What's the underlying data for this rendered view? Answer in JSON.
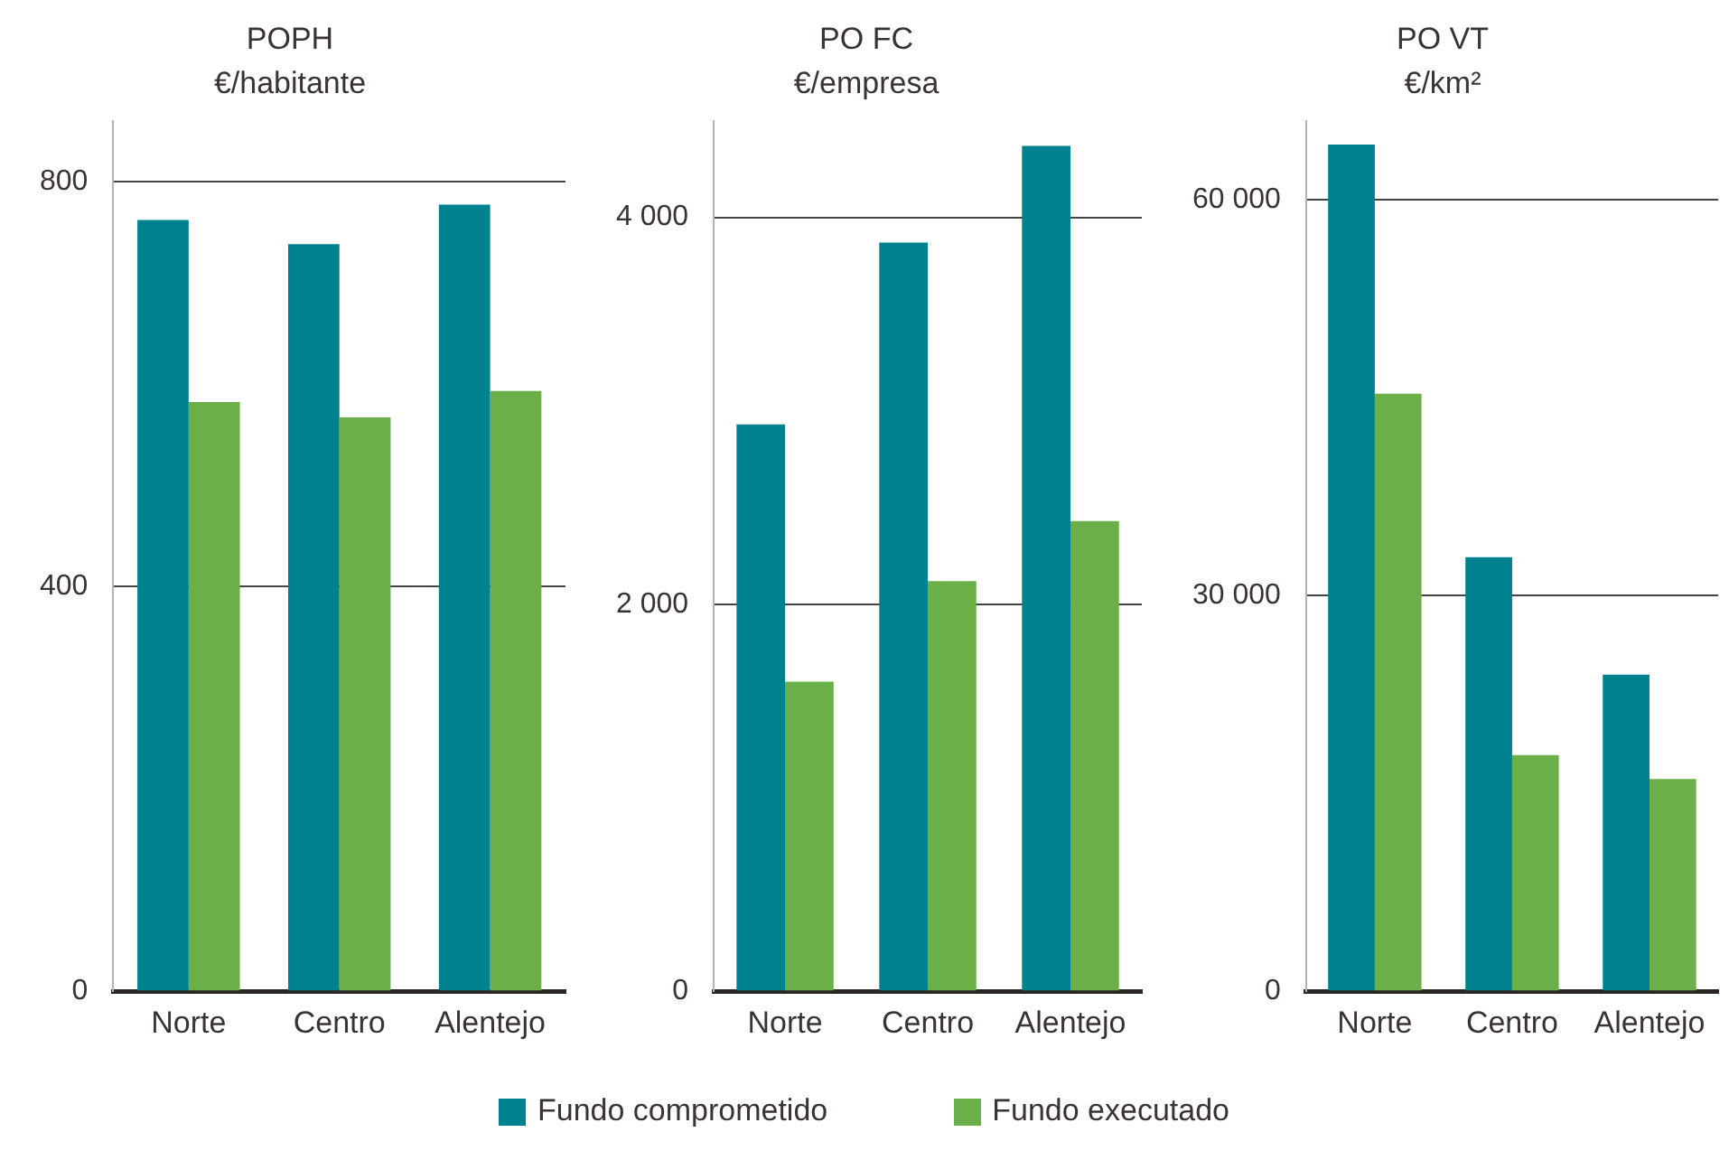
{
  "chart_data": [
    {
      "type": "bar",
      "title": "POPH",
      "subtitle": "€/habitante",
      "categories": [
        "Norte",
        "Centro",
        "Alentejo"
      ],
      "series": [
        {
          "name": "Fundo comprometido",
          "color": "#00818f",
          "values": [
            762,
            738,
            777
          ]
        },
        {
          "name": "Fundo executado",
          "color": "#6aaf48",
          "values": [
            582,
            567,
            593
          ]
        }
      ],
      "ylim": [
        0,
        860
      ],
      "yticks": [
        0,
        400,
        800
      ],
      "grid": "y",
      "legend": "bottom"
    },
    {
      "type": "bar",
      "title": "PO FC",
      "subtitle": "€/empresa",
      "categories": [
        "Norte",
        "Centro",
        "Alentejo"
      ],
      "series": [
        {
          "color": "#00818f",
          "values": [
            2930,
            3870,
            4370
          ]
        },
        {
          "color": "#6aaf48",
          "values": [
            1600,
            2120,
            2430
          ]
        }
      ],
      "ylim": [
        0,
        4500
      ],
      "yticks": [
        0,
        {
          "value": 2000,
          "label": "2 000"
        },
        {
          "value": 4000,
          "label": "4 000"
        }
      ],
      "grid": "y"
    },
    {
      "type": "bar",
      "title": "PO VT",
      "subtitle": "€/km²",
      "categories": [
        "Norte",
        "Centro",
        "Alentejo"
      ],
      "series": [
        {
          "color": "#00818f",
          "values": [
            64200,
            32900,
            24000
          ]
        },
        {
          "color": "#6aaf48",
          "values": [
            45300,
            17900,
            16100
          ]
        }
      ],
      "ylim": [
        0,
        66000
      ],
      "yticks": [
        0,
        {
          "value": 30000,
          "label": "30 000"
        },
        {
          "value": 60000,
          "label": "60 000"
        }
      ],
      "grid": "y"
    }
  ]
}
